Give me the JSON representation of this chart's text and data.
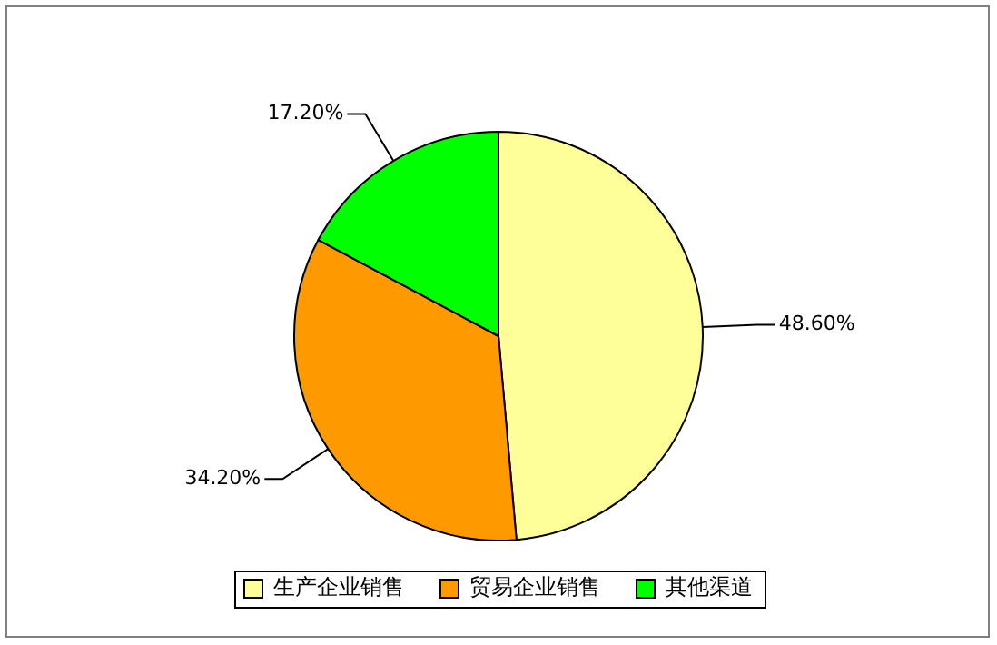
{
  "chart_data": {
    "type": "pie",
    "categories": [
      "生产企业销售",
      "贸易企业销售",
      "其他渠道"
    ],
    "values": [
      48.6,
      34.2,
      17.2
    ],
    "value_labels": [
      "48.60%",
      "34.20%",
      "17.20%"
    ],
    "colors": [
      "#ffff99",
      "#ff9900",
      "#00ff00"
    ],
    "legend": "bottom"
  }
}
